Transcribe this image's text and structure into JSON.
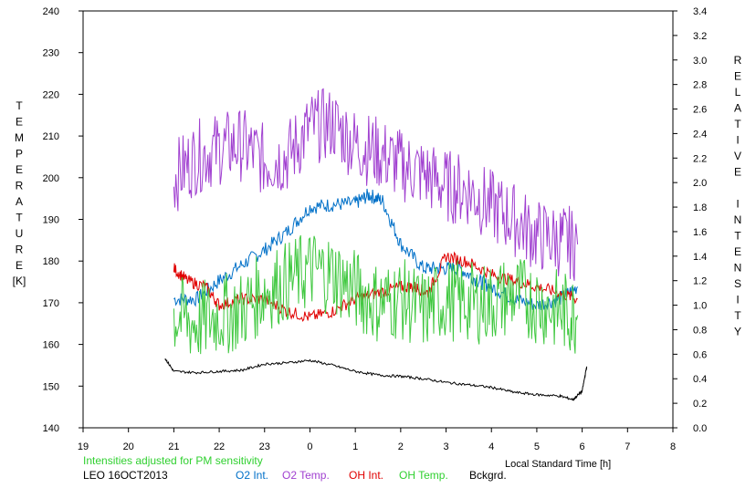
{
  "chart_data": {
    "type": "line",
    "xlabel": "Local Standard Time [h]",
    "ylabel_left": "TEMPERATURE",
    "ylabel_left_unit": "[K]",
    "ylabel_right": "RELATIVE INTENSITY",
    "xlim": [
      19,
      8
    ],
    "x_ticks": [
      "19",
      "20",
      "21",
      "22",
      "23",
      "0",
      "1",
      "2",
      "3",
      "4",
      "5",
      "6",
      "7",
      "8"
    ],
    "ylim_left": [
      140,
      240
    ],
    "y_ticks_left": [
      "240",
      "230",
      "220",
      "210",
      "200",
      "190",
      "180",
      "170",
      "160",
      "150",
      "140"
    ],
    "ylim_right": [
      0.0,
      3.4
    ],
    "y_ticks_right": [
      "3.4",
      "3.2",
      "3.0",
      "2.8",
      "2.6",
      "2.4",
      "2.2",
      "2.0",
      "1.8",
      "1.6",
      "1.4",
      "1.2",
      "1.0",
      "0.8",
      "0.6",
      "0.4",
      "0.2",
      "0.0"
    ],
    "note": "Intensities adjusted for PM sensitivity",
    "station": "LEO 16OCT2013",
    "series": [
      {
        "name": "O2 Int.",
        "axis": "right",
        "color": "#0070c8",
        "x": [
          21.0,
          21.5,
          22.0,
          22.5,
          23.0,
          23.5,
          24.0,
          24.5,
          25.0,
          25.3,
          25.6,
          26.0,
          26.5,
          26.9,
          27.3,
          27.7,
          28.0,
          28.5,
          29.0,
          29.5,
          29.9
        ],
        "y": [
          1.05,
          1.05,
          1.2,
          1.33,
          1.45,
          1.6,
          1.8,
          1.82,
          1.83,
          1.9,
          1.85,
          1.5,
          1.3,
          1.3,
          1.3,
          1.2,
          1.15,
          1.05,
          1.0,
          1.05,
          1.15
        ]
      },
      {
        "name": "O2 Temp.",
        "axis": "left",
        "color": "#a040d0",
        "x": [
          21.0,
          21.5,
          22.0,
          22.5,
          23.0,
          23.5,
          24.0,
          24.5,
          25.0,
          25.5,
          26.0,
          26.5,
          27.0,
          27.5,
          28.0,
          28.5,
          29.0,
          29.5,
          29.9
        ],
        "y": [
          200,
          205,
          207,
          208,
          204,
          205,
          212,
          213,
          208,
          206,
          203,
          201,
          198,
          197,
          193,
          190,
          186,
          185,
          184
        ]
      },
      {
        "name": "OH Int.",
        "axis": "right",
        "color": "#e00000",
        "x": [
          21.0,
          21.3,
          21.7,
          22.0,
          22.5,
          23.0,
          23.5,
          24.0,
          24.5,
          25.0,
          25.5,
          26.0,
          26.3,
          26.6,
          27.0,
          27.5,
          28.0,
          28.5,
          29.0,
          29.5,
          29.9
        ],
        "y": [
          1.3,
          1.2,
          1.15,
          1.0,
          1.05,
          1.05,
          0.95,
          0.9,
          0.95,
          1.05,
          1.1,
          1.15,
          1.15,
          1.1,
          1.4,
          1.35,
          1.25,
          1.2,
          1.15,
          1.1,
          1.05
        ]
      },
      {
        "name": "OH Temp.",
        "axis": "left",
        "color": "#40c840",
        "x": [
          21.0,
          21.5,
          22.0,
          22.5,
          23.0,
          23.5,
          24.0,
          24.5,
          25.0,
          25.5,
          26.0,
          26.5,
          27.0,
          27.5,
          28.0,
          28.5,
          29.0,
          29.5,
          29.9
        ],
        "y": [
          167,
          165,
          167,
          168,
          173,
          175,
          178,
          177,
          173,
          170,
          171,
          168,
          171,
          170,
          170,
          172,
          170,
          168,
          167
        ]
      },
      {
        "name": "Bckgrd.",
        "axis": "right",
        "color": "#000000",
        "x": [
          20.8,
          21.0,
          21.5,
          22.0,
          22.5,
          23.0,
          23.5,
          24.0,
          24.5,
          25.0,
          25.5,
          26.0,
          26.5,
          27.0,
          27.5,
          28.0,
          28.5,
          29.0,
          29.5,
          29.8,
          30.0,
          30.1
        ],
        "y": [
          0.57,
          0.46,
          0.45,
          0.46,
          0.47,
          0.52,
          0.53,
          0.55,
          0.51,
          0.46,
          0.43,
          0.42,
          0.4,
          0.37,
          0.35,
          0.33,
          0.29,
          0.27,
          0.26,
          0.23,
          0.3,
          0.5
        ]
      }
    ]
  }
}
